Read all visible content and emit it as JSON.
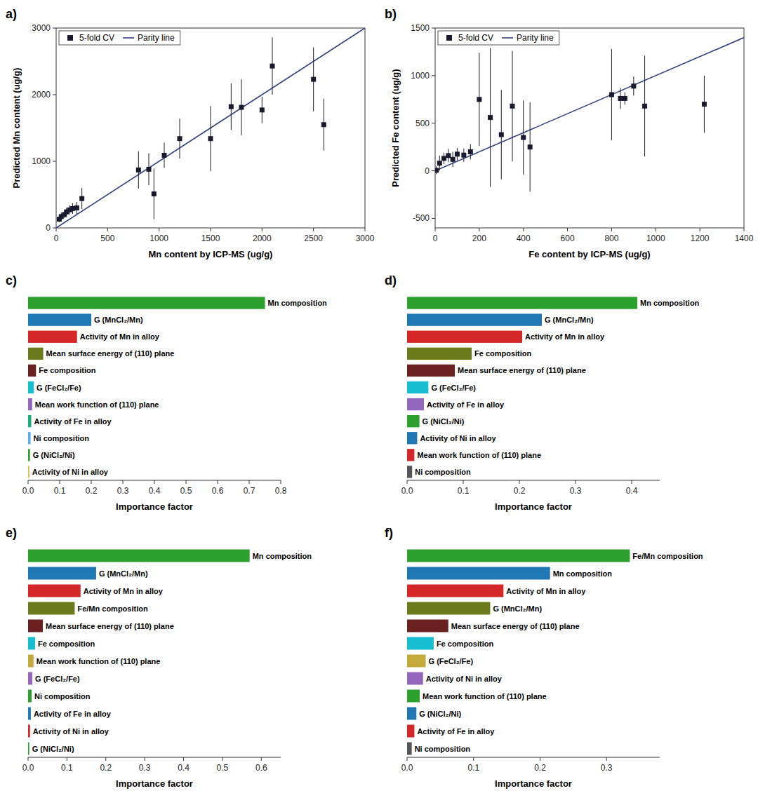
{
  "chart_data": [
    {
      "type": "scatter",
      "title": "a)",
      "xlabel": "Mn content by ICP-MS (ug/g)",
      "ylabel": "Predicted Mn content (ug/g)",
      "xlim": [
        0,
        3000
      ],
      "ylim": [
        0,
        3000
      ],
      "xticks": [
        0,
        500,
        1000,
        1500,
        2000,
        2500,
        3000
      ],
      "yticks": [
        0,
        1000,
        2000,
        3000
      ],
      "legend": "upper left",
      "series": [
        {
          "name": "5-fold CV",
          "type": "scatter",
          "marker": "square",
          "color": "#1a1a2e",
          "x": [
            30,
            50,
            80,
            100,
            130,
            160,
            200,
            250,
            800,
            900,
            950,
            1050,
            1200,
            1500,
            1700,
            1800,
            2000,
            2100,
            2500,
            2600
          ],
          "values": [
            130,
            170,
            200,
            240,
            270,
            290,
            300,
            440,
            870,
            880,
            510,
            1090,
            1340,
            1340,
            1820,
            1810,
            1770,
            2430,
            2230,
            1550
          ],
          "yerr": [
            40,
            60,
            50,
            60,
            70,
            80,
            90,
            160,
            280,
            240,
            380,
            190,
            300,
            490,
            350,
            420,
            200,
            430,
            480,
            390
          ]
        },
        {
          "name": "Parity line",
          "type": "line",
          "line_style": "solid",
          "color": "#2e4080",
          "x": [
            0,
            3000
          ],
          "values": [
            0,
            3000
          ]
        }
      ]
    },
    {
      "type": "scatter",
      "title": "b)",
      "xlabel": "Fe content by ICP-MS (ug/g)",
      "ylabel": "Predicted Fe content (ug/g)",
      "xlim": [
        0,
        1400
      ],
      "ylim": [
        -600,
        1500
      ],
      "xticks": [
        0,
        200,
        400,
        600,
        800,
        1000,
        1200,
        1400
      ],
      "yticks": [
        -500,
        0,
        500,
        1000,
        1500
      ],
      "legend": "upper left",
      "series": [
        {
          "name": "5-fold CV",
          "type": "scatter",
          "marker": "square",
          "color": "#1a1a2e",
          "x": [
            5,
            20,
            40,
            60,
            80,
            100,
            130,
            160,
            200,
            250,
            300,
            350,
            400,
            430,
            800,
            840,
            860,
            900,
            950,
            1220
          ],
          "values": [
            5,
            80,
            130,
            160,
            120,
            175,
            165,
            200,
            750,
            560,
            380,
            680,
            350,
            250,
            800,
            760,
            760,
            890,
            680,
            700
          ],
          "yerr": [
            40,
            80,
            60,
            70,
            80,
            65,
            70,
            80,
            490,
            730,
            470,
            580,
            390,
            470,
            480,
            110,
            65,
            100,
            530,
            300
          ]
        },
        {
          "name": "Parity line",
          "type": "line",
          "line_style": "solid",
          "color": "#2e4080",
          "x": [
            0,
            1400
          ],
          "values": [
            0,
            1400
          ]
        }
      ]
    },
    {
      "type": "bar",
      "orientation": "horizontal",
      "title": "c)",
      "tick_labels": "x",
      "xlabel": "Importance factor",
      "xlim": [
        0,
        0.8
      ],
      "xticks": [
        {
          "value": 0,
          "label": "0.0"
        },
        0.1,
        0.2,
        0.3,
        0.4,
        0.5,
        0.6,
        0.7,
        0.8
      ],
      "categories": [
        "Mn composition",
        "G (MnCl₂/Mn)",
        "Activity of Mn in alloy",
        "Mean surface energy of (110) plane",
        "Fe composition",
        "G (FeCl₂/Fe)",
        "Mean work function of (110) plane",
        "Activity of Fe in alloy",
        "Ni composition",
        "G (NiCl₂/Ni)",
        "Activity of Ni in alloy"
      ],
      "values": [
        0.75,
        0.2,
        0.155,
        0.048,
        0.025,
        0.018,
        0.013,
        0.01,
        0.008,
        0.006,
        0.004
      ],
      "colors": [
        "#2ca02c",
        "#1f77b4",
        "#d62728",
        "#6b7a1a",
        "#6b2020",
        "#17becf",
        "#9467bd",
        "#1aad7a",
        "#5aafe8",
        "#2ca02c",
        "#e8b84b"
      ]
    },
    {
      "type": "bar",
      "orientation": "horizontal",
      "title": "d)",
      "tick_labels": "x",
      "xlabel": "Importance factor",
      "xlim": [
        0,
        0.45
      ],
      "xticks": [
        {
          "value": 0,
          "label": "0.0"
        },
        0.1,
        0.2,
        0.3,
        0.4
      ],
      "categories": [
        "Mn composition",
        "G (MnCl₂/Mn)",
        "Activity of Mn in alloy",
        "Fe composition",
        "Mean surface energy of (110) plane",
        "G (FeCl₂/Fe)",
        "Activity of Fe in alloy",
        "G (NiCl₂/Ni)",
        "Activity of Ni in alloy",
        "Mean work function of (110) plane",
        "Ni composition"
      ],
      "values": [
        0.41,
        0.24,
        0.205,
        0.115,
        0.085,
        0.038,
        0.03,
        0.022,
        0.018,
        0.013,
        0.009
      ],
      "colors": [
        "#2ca02c",
        "#1f77b4",
        "#d62728",
        "#6b7a1a",
        "#6b2020",
        "#17becf",
        "#9467bd",
        "#2ca02c",
        "#1f77b4",
        "#d62728",
        "#555555"
      ]
    },
    {
      "type": "bar",
      "orientation": "horizontal",
      "title": "e)",
      "tick_labels": "x",
      "xlabel": "Importance factor",
      "xlim": [
        0,
        0.65
      ],
      "xticks": [
        {
          "value": 0,
          "label": "0.0"
        },
        0.1,
        0.2,
        0.3,
        0.4,
        0.5,
        0.6
      ],
      "categories": [
        "Mn composition",
        "G (MnCl₂/Mn)",
        "Activity of Mn in alloy",
        "Fe/Mn composition",
        "Mean surface energy of (110) plane",
        "Fe composition",
        "Mean work function of (110) plane",
        "G (FeCl₂/Fe)",
        "Ni composition",
        "Activity of Fe in alloy",
        "Activity of Ni in alloy",
        "G (NiCl₂/Ni)"
      ],
      "values": [
        0.57,
        0.175,
        0.135,
        0.12,
        0.038,
        0.018,
        0.014,
        0.011,
        0.009,
        0.007,
        0.005,
        0.003
      ],
      "colors": [
        "#2ca02c",
        "#1f77b4",
        "#d62728",
        "#6b7a1a",
        "#6b2020",
        "#17becf",
        "#c4aa3a",
        "#9467bd",
        "#2ca02c",
        "#1f77b4",
        "#d62728",
        "#2ca02c"
      ]
    },
    {
      "type": "bar",
      "orientation": "horizontal",
      "title": "f)",
      "tick_labels": "x",
      "xlabel": "Importance factor",
      "xlim": [
        0,
        0.38
      ],
      "xticks": [
        {
          "value": 0,
          "label": "0.0"
        },
        0.1,
        0.2,
        0.3
      ],
      "categories": [
        "Fe/Mn composition",
        "Mn composition",
        "Activity of Mn in alloy",
        "G (MnCl₂/Mn)",
        "Mean surface energy of (110) plane",
        "Fe composition",
        "G (FeCl₂/Fe)",
        "Activity of Ni in alloy",
        "Mean work function of (110) plane",
        "G (NiCl₂/Ni)",
        "Activity of Fe in alloy",
        "Ni composition"
      ],
      "values": [
        0.335,
        0.215,
        0.145,
        0.125,
        0.062,
        0.04,
        0.028,
        0.024,
        0.019,
        0.014,
        0.011,
        0.007
      ],
      "colors": [
        "#2ca02c",
        "#1f77b4",
        "#d62728",
        "#6b7a1a",
        "#6b2020",
        "#17becf",
        "#c4aa3a",
        "#9467bd",
        "#2ca02c",
        "#1f77b4",
        "#d62728",
        "#555555"
      ]
    }
  ]
}
